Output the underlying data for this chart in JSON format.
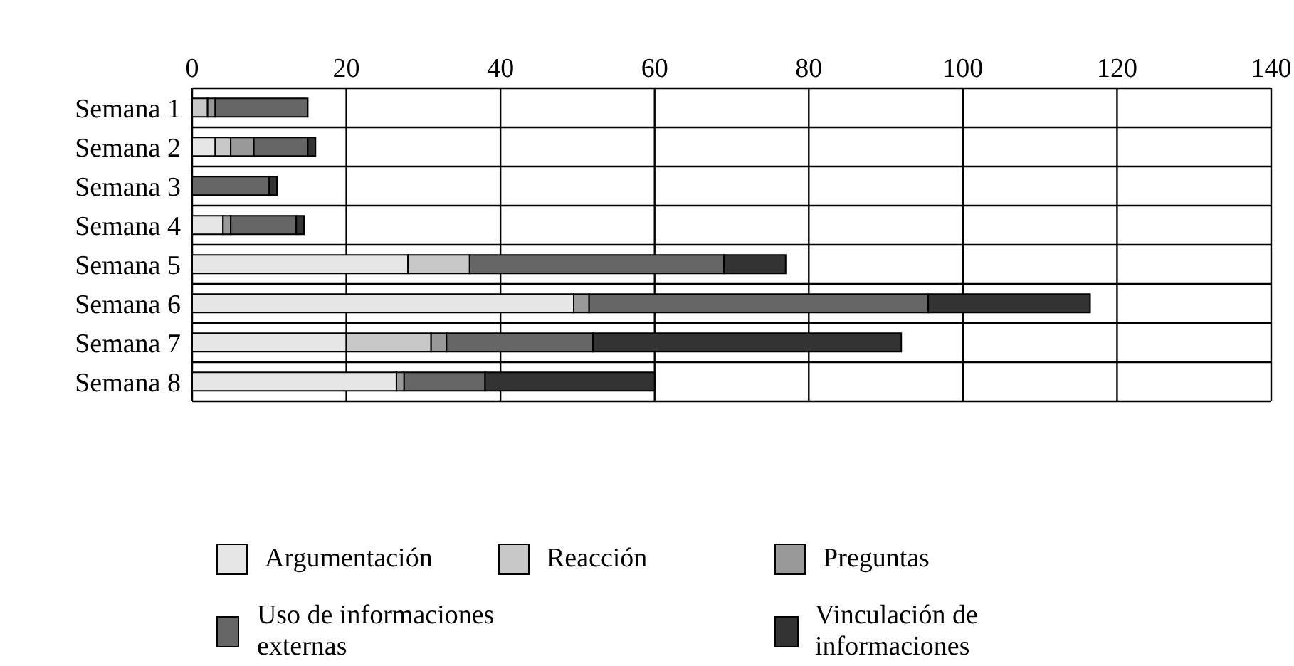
{
  "chart_data": {
    "type": "bar",
    "orientation": "horizontal",
    "stacked": true,
    "categories": [
      "Semana 1",
      "Semana 2",
      "Semana 3",
      "Semana 4",
      "Semana 5",
      "Semana 6",
      "Semana 7",
      "Semana 8"
    ],
    "series": [
      {
        "name": "Argumentación",
        "color": "#e6e6e6",
        "values": [
          0,
          3,
          0,
          4,
          28,
          49.5,
          20,
          26.5
        ]
      },
      {
        "name": "Reacción",
        "color": "#c8c8c8",
        "values": [
          2,
          2,
          0,
          0,
          8,
          0,
          11,
          0
        ]
      },
      {
        "name": "Preguntas",
        "color": "#999999",
        "values": [
          1,
          3,
          0,
          1,
          0,
          2,
          2,
          1
        ]
      },
      {
        "name": "Uso de informaciones externas",
        "color": "#666666",
        "values": [
          12,
          7,
          10,
          8.5,
          33,
          44,
          19,
          10.5
        ]
      },
      {
        "name": "Vinculación de informaciones",
        "color": "#333333",
        "values": [
          0,
          1,
          1,
          1,
          8,
          21,
          40,
          22
        ]
      }
    ],
    "xlim": [
      0,
      140
    ],
    "xticks": [
      0,
      20,
      40,
      60,
      80,
      100,
      120,
      140
    ],
    "grid": true,
    "legend": "bottom"
  }
}
